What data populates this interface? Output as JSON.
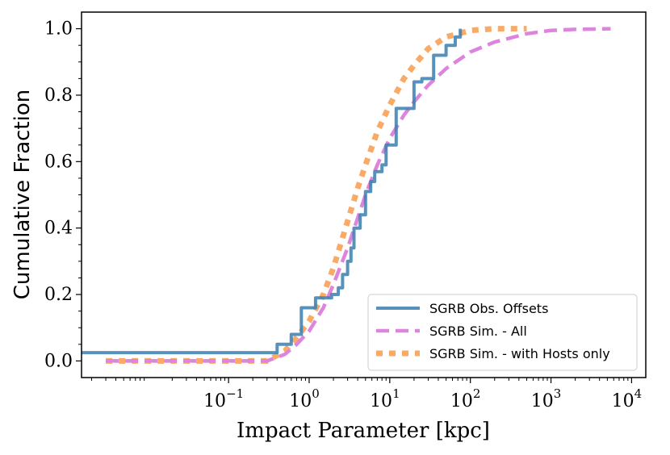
{
  "chart_data": {
    "type": "line",
    "title": "",
    "xlabel": "Impact Parameter [kpc]",
    "ylabel": "Cumulative Fraction",
    "xscale": "log",
    "xlim": [
      0.0015,
      15000
    ],
    "ylim": [
      -0.05,
      1.05
    ],
    "x_ticks": [
      {
        "base": "10",
        "exp": "−1",
        "value": 0.1
      },
      {
        "base": "10",
        "exp": "0",
        "value": 1
      },
      {
        "base": "10",
        "exp": "1",
        "value": 10
      },
      {
        "base": "10",
        "exp": "2",
        "value": 100
      },
      {
        "base": "10",
        "exp": "3",
        "value": 1000
      },
      {
        "base": "10",
        "exp": "4",
        "value": 10000
      }
    ],
    "y_ticks": [
      {
        "label": "0.0",
        "value": 0.0
      },
      {
        "label": "0.2",
        "value": 0.2
      },
      {
        "label": "0.4",
        "value": 0.4
      },
      {
        "label": "0.6",
        "value": 0.6
      },
      {
        "label": "0.8",
        "value": 0.8
      },
      {
        "label": "1.0",
        "value": 1.0
      }
    ],
    "legend_position": "lower-right",
    "series": [
      {
        "name": "SGRB Obs. Offsets",
        "style": "step",
        "color": "#3a7fb0",
        "x": [
          0.0015,
          0.4,
          0.6,
          0.8,
          1.2,
          1.9,
          2.3,
          2.6,
          3.0,
          3.3,
          3.6,
          4.3,
          5.0,
          5.8,
          6.5,
          8.0,
          9.0,
          12.0,
          20.0,
          25.0,
          35.0,
          50.0,
          65.0,
          75.0
        ],
        "values": [
          0.025,
          0.05,
          0.08,
          0.16,
          0.19,
          0.2,
          0.22,
          0.26,
          0.3,
          0.34,
          0.4,
          0.44,
          0.51,
          0.54,
          0.57,
          0.59,
          0.65,
          0.76,
          0.84,
          0.85,
          0.92,
          0.95,
          0.975,
          1.0
        ]
      },
      {
        "name": "SGRB Sim. - All",
        "style": "dashed",
        "color": "#dd84dd",
        "x": [
          0.003,
          0.3,
          0.5,
          0.7,
          1.0,
          1.5,
          2.0,
          3.0,
          4.0,
          5.0,
          7.0,
          10.0,
          15.0,
          20.0,
          30.0,
          50.0,
          100.0,
          200.0,
          500.0,
          1000.0,
          2000.0,
          5500.0
        ],
        "values": [
          0.0,
          0.0,
          0.02,
          0.05,
          0.09,
          0.16,
          0.23,
          0.34,
          0.43,
          0.5,
          0.59,
          0.67,
          0.74,
          0.78,
          0.83,
          0.88,
          0.93,
          0.96,
          0.985,
          0.995,
          0.998,
          1.0
        ]
      },
      {
        "name": "SGRB Sim. - with Hosts only",
        "style": "dotted",
        "color": "#f9a55e",
        "x": [
          0.003,
          0.3,
          0.5,
          0.7,
          1.0,
          1.5,
          2.0,
          3.0,
          4.0,
          5.0,
          7.0,
          10.0,
          15.0,
          20.0,
          30.0,
          50.0,
          100.0,
          200.0,
          500.0
        ],
        "values": [
          0.0,
          0.0,
          0.03,
          0.07,
          0.12,
          0.2,
          0.28,
          0.42,
          0.52,
          0.59,
          0.69,
          0.77,
          0.85,
          0.89,
          0.94,
          0.975,
          0.995,
          1.0,
          1.0
        ]
      }
    ]
  }
}
